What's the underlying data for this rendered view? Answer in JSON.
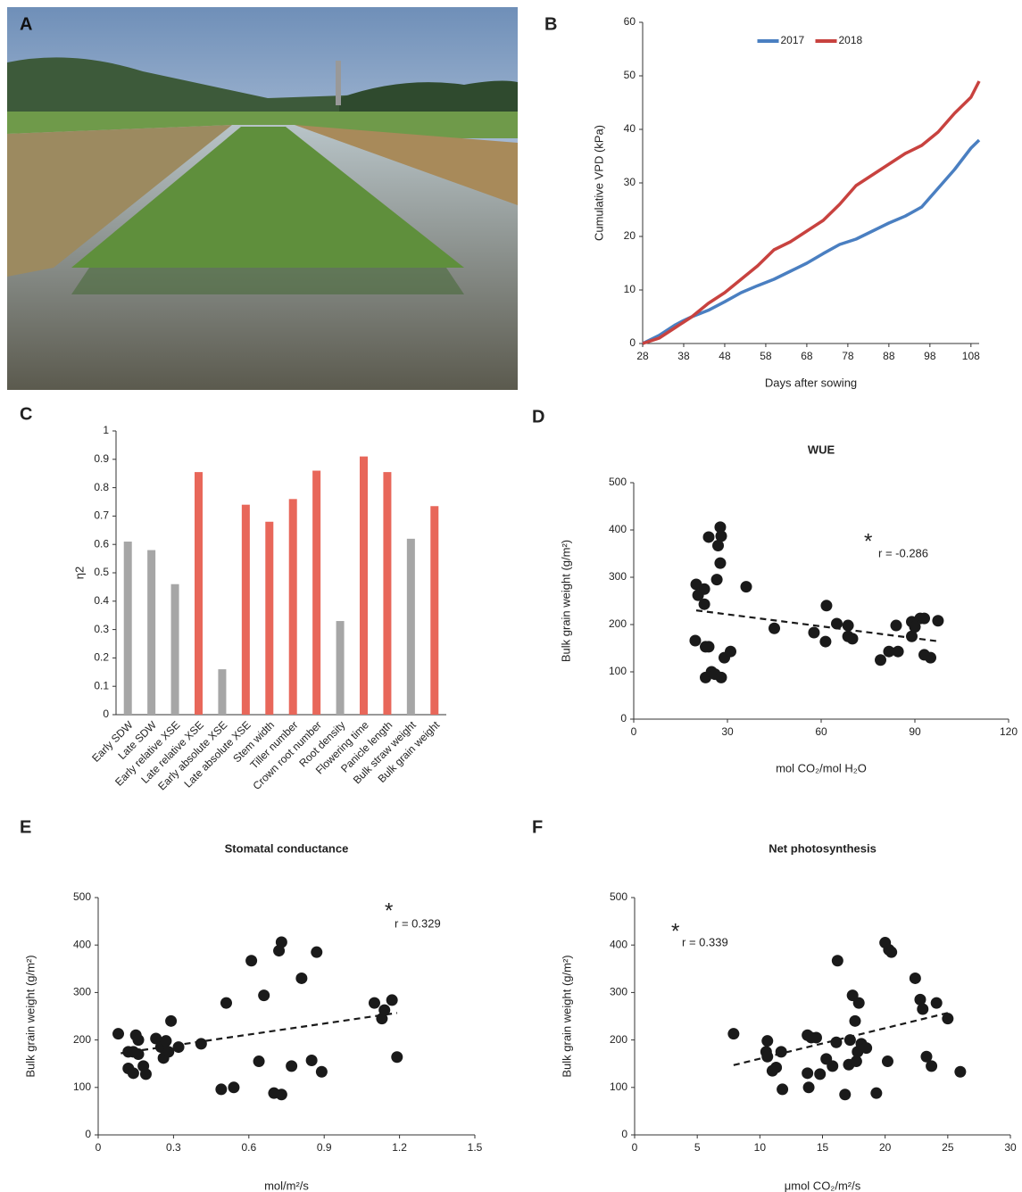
{
  "photo_label": "A",
  "chart_data": [
    {
      "type": "line",
      "label": "B",
      "ylabel": "Cumulative VPD (kPa)",
      "xlabel": "Days after sowing",
      "x": [
        28,
        32,
        36,
        38,
        40,
        44,
        48,
        52,
        56,
        60,
        64,
        68,
        72,
        76,
        80,
        84,
        88,
        92,
        96,
        100,
        104,
        108,
        110
      ],
      "series": [
        {
          "name": "2017",
          "color": "#4a7fc1",
          "values": [
            0,
            1.5,
            3.5,
            4.3,
            5,
            6.2,
            7.8,
            9.5,
            10.8,
            12,
            13.5,
            15,
            16.8,
            18.5,
            19.5,
            21,
            22.5,
            23.8,
            25.5,
            29,
            32.5,
            36.5,
            38
          ]
        },
        {
          "name": "2018",
          "color": "#c8423f",
          "values": [
            0,
            1,
            3,
            4,
            5,
            7.5,
            9.5,
            12,
            14.5,
            17.5,
            19,
            21,
            23,
            26,
            29.5,
            31.5,
            33.5,
            35.5,
            37,
            39.5,
            43,
            46,
            49
          ]
        }
      ],
      "xlim": [
        28,
        110
      ],
      "xticks": [
        28,
        38,
        48,
        58,
        68,
        78,
        88,
        98,
        108
      ],
      "ylim": [
        0,
        60
      ],
      "yticks": [
        0,
        10,
        20,
        30,
        40,
        50,
        60
      ],
      "legend": "top"
    },
    {
      "type": "bar",
      "label": "C",
      "ylabel": "η2",
      "categories": [
        "Early SDW",
        "Late SDW",
        "Early relative XSE",
        "Late relative XSE",
        "Early absolute XSE",
        "Late absolute XSE",
        "Stem width",
        "Tiller number",
        "Crown root number",
        "Root density",
        "Flowering time",
        "Panicle length",
        "Bulk straw weight",
        "Bulk grain weight"
      ],
      "values": [
        0.61,
        0.58,
        0.46,
        0.855,
        0.16,
        0.74,
        0.68,
        0.76,
        0.86,
        0.33,
        0.91,
        0.855,
        0.62,
        0.735
      ],
      "colors": [
        "#a6a6a6",
        "#a6a6a6",
        "#a6a6a6",
        "#e8675a",
        "#a6a6a6",
        "#e8675a",
        "#e8675a",
        "#e8675a",
        "#e8675a",
        "#a6a6a6",
        "#e8675a",
        "#e8675a",
        "#a6a6a6",
        "#e8675a"
      ],
      "ylim": [
        0,
        1
      ],
      "yticks": [
        0,
        0.1,
        0.2,
        0.3,
        0.4,
        0.5,
        0.6,
        0.7,
        0.8,
        0.9,
        1
      ]
    },
    {
      "type": "scatter",
      "label": "D",
      "title": "WUE",
      "xlabel": "mol CO₂/mol H₂O",
      "ylabel": "Bulk grain weight (g/m²)",
      "significance": "*",
      "annotation": "r = -0.286",
      "color": "#1a1a1a",
      "x": [
        20,
        20.6,
        22.6,
        22.6,
        24,
        24,
        23,
        24.9,
        26,
        26.6,
        27,
        27.7,
        28,
        27.7,
        28,
        29,
        31,
        36,
        19.7,
        23,
        45,
        57.7,
        61.7,
        61.4,
        65,
        68.6,
        68.6,
        70,
        79,
        81.7,
        84.6,
        84,
        89,
        89,
        91.7,
        93,
        93,
        95,
        97.4,
        90
      ],
      "values": [
        285,
        262,
        275,
        243,
        385,
        153,
        88,
        100,
        95,
        295,
        367,
        406,
        387,
        330,
        88,
        130,
        143,
        280,
        166,
        153,
        192,
        183,
        240,
        164,
        202,
        198,
        175,
        170,
        125,
        143,
        143,
        198,
        206,
        175,
        213,
        213,
        136,
        130,
        208,
        195
      ],
      "trendline": {
        "x": [
          20,
          97
        ],
        "values": [
          230,
          165
        ]
      },
      "xlim": [
        0,
        120
      ],
      "xticks": [
        0,
        30,
        60,
        90,
        120
      ],
      "ylim": [
        0,
        500
      ],
      "yticks": [
        0,
        100,
        200,
        300,
        400,
        500
      ]
    },
    {
      "type": "scatter",
      "label": "E",
      "title": "Stomatal conductance",
      "xlabel": "mol/m²/s",
      "ylabel": "Bulk grain weight (g/m²)",
      "significance": "*",
      "annotation": "r = 0.329",
      "color": "#1a1a1a",
      "x": [
        0.08,
        0.12,
        0.12,
        0.14,
        0.15,
        0.16,
        0.16,
        0.18,
        0.19,
        0.23,
        0.25,
        0.26,
        0.27,
        0.29,
        0.32,
        0.41,
        0.49,
        0.51,
        0.54,
        0.61,
        0.64,
        0.66,
        0.7,
        0.72,
        0.73,
        0.73,
        0.77,
        0.81,
        0.85,
        0.87,
        0.89,
        1.1,
        1.13,
        1.14,
        1.17,
        1.19,
        0.14,
        0.28
      ],
      "values": [
        213,
        175,
        140,
        130,
        210,
        170,
        200,
        145,
        128,
        203,
        185,
        162,
        198,
        240,
        185,
        192,
        96,
        278,
        100,
        367,
        155,
        294,
        88,
        388,
        406,
        85,
        145,
        330,
        157,
        385,
        133,
        278,
        245,
        263,
        284,
        164,
        175,
        175
      ],
      "trendline": {
        "x": [
          0.09,
          1.19
        ],
        "values": [
          172,
          257
        ]
      },
      "xlim": [
        0,
        1.5
      ],
      "xticks": [
        0,
        0.3,
        0.6,
        0.9,
        1.2,
        1.5
      ],
      "ylim": [
        0,
        500
      ],
      "yticks": [
        0,
        100,
        200,
        300,
        400,
        500
      ]
    },
    {
      "type": "scatter",
      "label": "F",
      "title": "Net photosynthesis",
      "xlabel": "μmol CO₂/m²/s",
      "ylabel": "Bulk grain weight (g/m²)",
      "significance": "*",
      "annotation": "r = 0.339",
      "color": "#1a1a1a",
      "x": [
        7.9,
        10.5,
        10.6,
        10.6,
        11,
        11.3,
        11.7,
        11.8,
        13.8,
        13.8,
        13.9,
        14.1,
        14.5,
        14.8,
        15.3,
        15.8,
        16.1,
        16.2,
        16.8,
        17.1,
        17.2,
        17.4,
        17.6,
        17.7,
        17.8,
        17.9,
        18.1,
        18.5,
        19.3,
        20,
        20.2,
        20.3,
        20.5,
        22.4,
        22.8,
        23,
        23.3,
        23.7,
        24.1,
        25,
        26
      ],
      "values": [
        213,
        175,
        198,
        165,
        135,
        142,
        175,
        96,
        130,
        210,
        100,
        205,
        205,
        128,
        160,
        145,
        195,
        367,
        85,
        148,
        200,
        294,
        240,
        155,
        175,
        278,
        192,
        183,
        88,
        405,
        155,
        390,
        385,
        330,
        285,
        265,
        165,
        145,
        278,
        245,
        133
      ],
      "trendline": {
        "x": [
          7.9,
          25
        ],
        "values": [
          147,
          257
        ]
      },
      "xlim": [
        0,
        30
      ],
      "xticks": [
        0,
        5,
        10,
        15,
        20,
        25,
        30
      ],
      "ylim": [
        0,
        500
      ],
      "yticks": [
        0,
        100,
        200,
        300,
        400,
        500
      ]
    }
  ]
}
